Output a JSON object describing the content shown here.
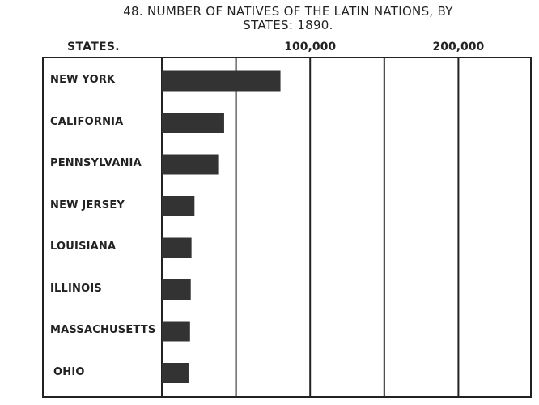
{
  "chart_data": {
    "type": "bar",
    "orientation": "horizontal",
    "title_line1": "48. NUMBER OF NATIVES OF THE LATIN NATIONS, BY",
    "title_line2": "STATES: 1890.",
    "category_header": "STATES.",
    "categories": [
      "NEW YORK",
      "CALIFORNIA",
      "PENNSYLVANIA",
      "NEW JERSEY",
      "LOUISIANA",
      "ILLINOIS",
      "MASSACHUSETTS",
      "OHIO"
    ],
    "values": [
      80000,
      42000,
      38000,
      22000,
      20000,
      19500,
      19000,
      18000
    ],
    "xlim": [
      0,
      250000
    ],
    "gridlines": [
      50000,
      100000,
      150000,
      200000
    ],
    "tick_labels": [
      {
        "value": 100000,
        "label": "100,000"
      },
      {
        "value": 200000,
        "label": "200,000"
      }
    ],
    "bar_color": "#333333",
    "grid": true
  }
}
